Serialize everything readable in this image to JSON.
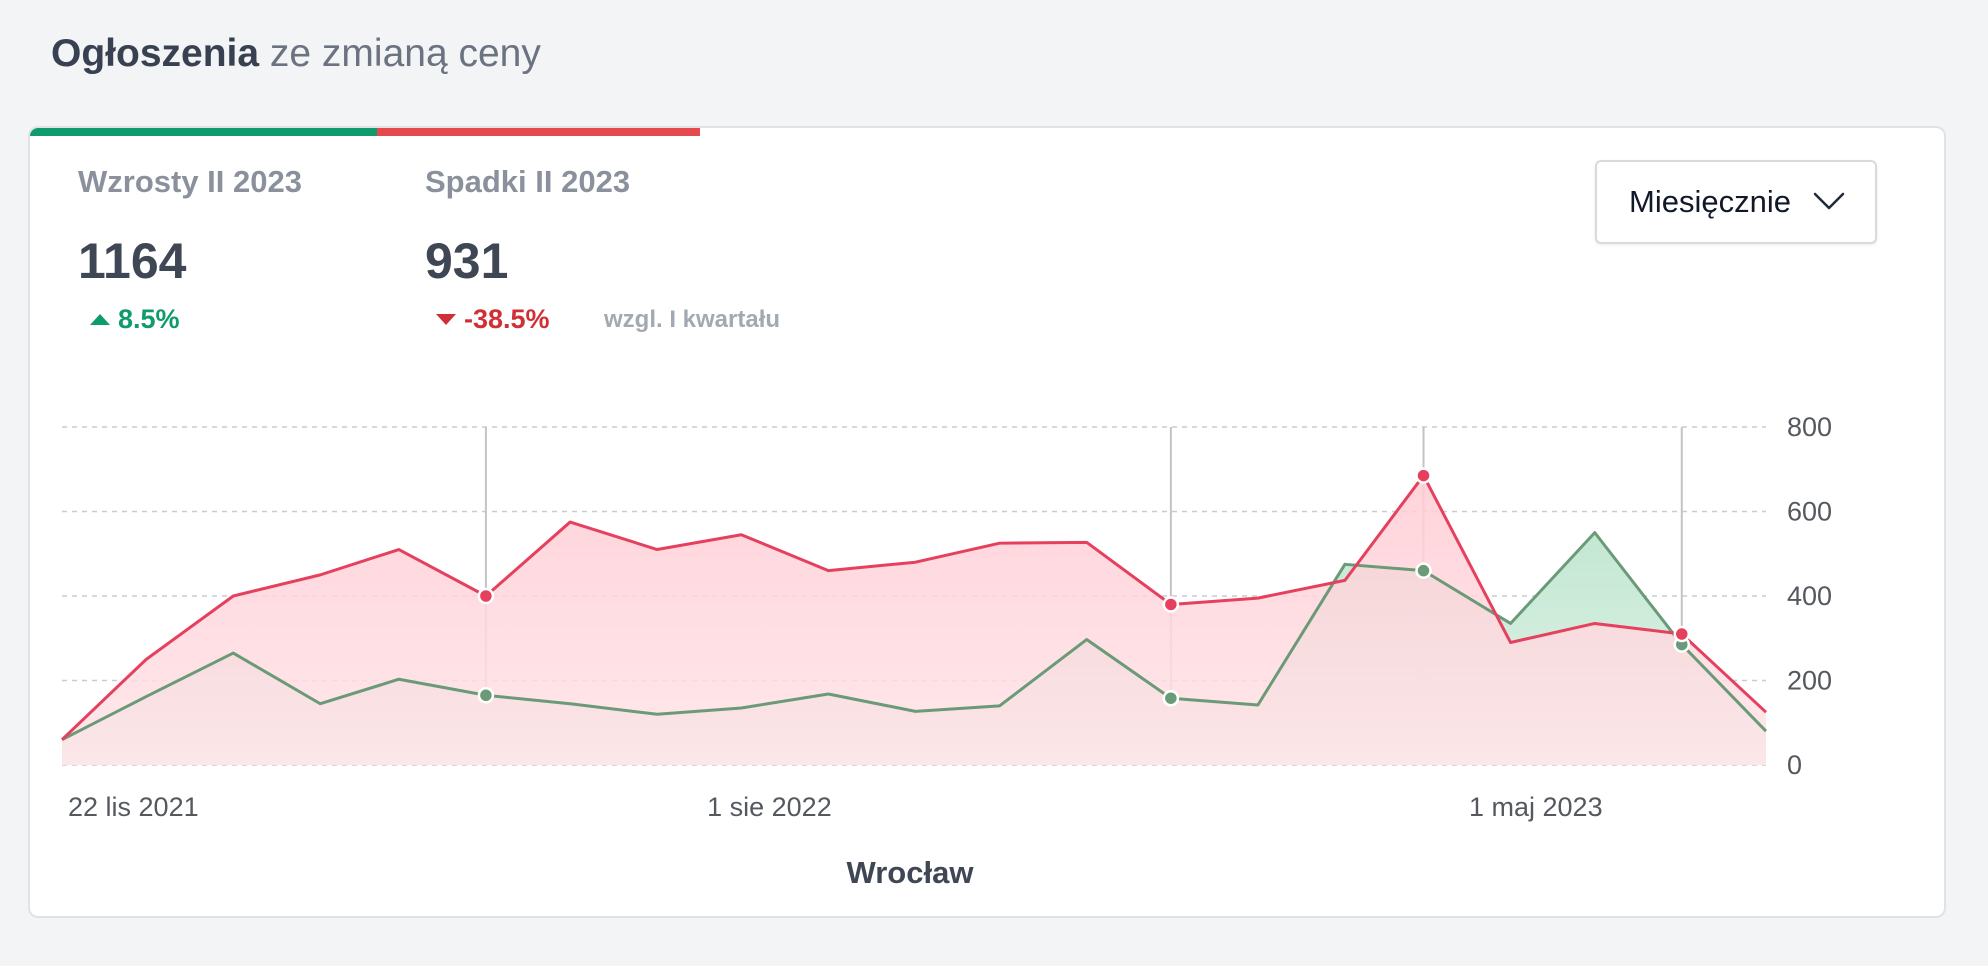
{
  "header": {
    "title_strong": "Ogłoszenia",
    "title_rest": "ze zmianą ceny"
  },
  "stats": {
    "increase": {
      "label": "Wzrosty II 2023",
      "value": "1164",
      "change": "8.5%"
    },
    "decrease": {
      "label": "Spadki II 2023",
      "value": "931",
      "change": "-38.5%"
    },
    "compare_note": "wzgl. I kwartału"
  },
  "period_select": {
    "selected": "Miesięcznie"
  },
  "colors": {
    "increase": "#0f9b6e",
    "decrease": "#e5484d",
    "increase_line": "#6a9a78",
    "decrease_line": "#e5405e"
  },
  "chart_data": {
    "type": "area",
    "title": "",
    "xlabel": "Wrocław",
    "ylabel": "",
    "ylim": [
      0,
      800
    ],
    "y_ticks": [
      "0",
      "200",
      "400",
      "600",
      "800"
    ],
    "x_tick_labels": [
      "22 lis 2021",
      "1 sie 2022",
      "1 maj 2023"
    ],
    "x": [
      "2021-11-22",
      "2021-12-22",
      "2022-01-22",
      "2022-02-22",
      "2022-03-22",
      "2022-04-22",
      "2022-05-22",
      "2022-06-22",
      "2022-07-22",
      "2022-08-22",
      "2022-09-22",
      "2022-10-22",
      "2022-11-22",
      "2022-12-22",
      "2023-01-22",
      "2023-02-22",
      "2023-03-22",
      "2023-04-22",
      "2023-05-22",
      "2023-06-22",
      "2023-07-22"
    ],
    "series": [
      {
        "values": [
          60,
          250,
          400,
          450,
          510,
          400,
          575,
          510,
          545,
          460,
          480,
          525,
          527,
          380,
          395,
          437,
          685,
          290,
          335,
          310,
          125
        ]
      },
      {
        "values": [
          60,
          162,
          265,
          145,
          203,
          165,
          145,
          120,
          135,
          168,
          127,
          140,
          297,
          158,
          142,
          475,
          460,
          335,
          550,
          285,
          80
        ]
      }
    ],
    "legend": "none",
    "grid": "horizontal dashed"
  }
}
